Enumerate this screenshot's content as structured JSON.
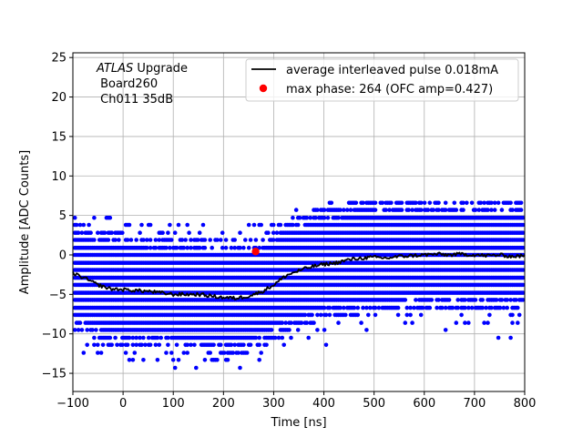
{
  "chart_data": {
    "type": "scatter",
    "title": "",
    "xlabel": "Time [ns]",
    "ylabel": "Amplitude [ADC Counts]",
    "xlim": [
      -100,
      800
    ],
    "ylim": [
      -17.3,
      25.6
    ],
    "xticks": [
      -100,
      0,
      100,
      200,
      300,
      400,
      500,
      600,
      700,
      800
    ],
    "yticks": [
      -15,
      -10,
      -5,
      0,
      5,
      10,
      15,
      20,
      25
    ],
    "grid": true,
    "legend_position": "top-right",
    "annotation": {
      "italic_part": "ATLAS",
      "line1_rest": " Upgrade",
      "line2": " Board260",
      "line3": " Ch011 35dB"
    },
    "colors": {
      "samples": "#0000ff",
      "average": "#000000",
      "max_phase": "#ff0000"
    },
    "series": [
      {
        "name": "average interleaved pulse 0.018mA",
        "kind": "line",
        "x": [
          -100,
          -75,
          -50,
          -25,
          0,
          25,
          50,
          75,
          100,
          125,
          150,
          175,
          200,
          225,
          250,
          275,
          300,
          325,
          350,
          375,
          400,
          425,
          450,
          475,
          500,
          525,
          550,
          575,
          600,
          625,
          650,
          675,
          700,
          725,
          750,
          775,
          800
        ],
        "y": [
          -2.3,
          -3.0,
          -3.8,
          -4.3,
          -4.4,
          -4.5,
          -4.6,
          -4.8,
          -5.0,
          -5.0,
          -5.0,
          -5.2,
          -5.4,
          -5.5,
          -5.2,
          -4.7,
          -3.8,
          -2.6,
          -2.0,
          -1.5,
          -1.2,
          -1.0,
          -0.6,
          -0.4,
          -0.3,
          -0.4,
          -0.2,
          -0.1,
          0.0,
          0.1,
          0.0,
          0.1,
          0.0,
          -0.1,
          0.0,
          -0.2,
          -0.1
        ]
      },
      {
        "name": "max phase: 264 (OFC amp=0.427)",
        "kind": "point",
        "x": [
          264
        ],
        "y": [
          0.427
        ]
      }
    ],
    "samples": {
      "levels": [
        -15.2,
        -14.3,
        -13.3,
        -12.4,
        -11.4,
        -10.5,
        -9.5,
        -8.6,
        -7.6,
        -6.7,
        -5.7,
        -4.8,
        -3.8,
        -2.9,
        -1.9,
        -1.0,
        0.0,
        0.9,
        1.9,
        2.8,
        3.8,
        4.7,
        5.7,
        6.6
      ],
      "x_start": -96,
      "x_end": 798,
      "x_step": 3.5
    }
  }
}
